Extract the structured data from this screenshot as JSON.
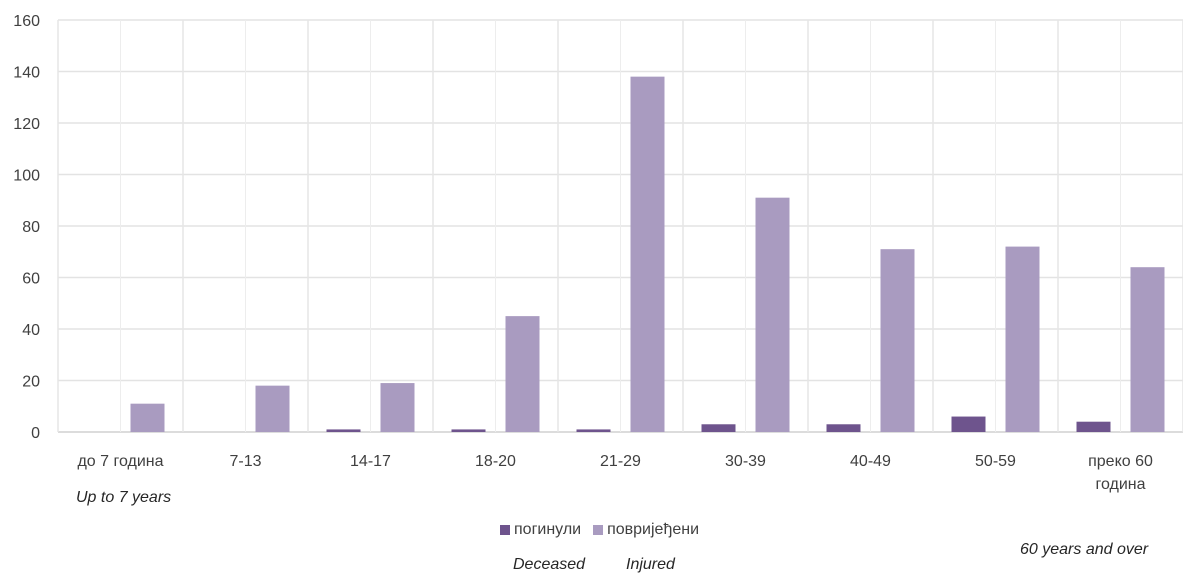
{
  "chart_data": {
    "type": "bar",
    "categories": [
      "до 7 година",
      "7-13",
      "14-17",
      "18-20",
      "21-29",
      "30-39",
      "40-49",
      "50-59",
      "преко 60 година"
    ],
    "series": [
      {
        "name": "погинули",
        "color": "#6e548d",
        "values": [
          0,
          0,
          1,
          1,
          1,
          3,
          3,
          6,
          4
        ]
      },
      {
        "name": "повријеђени",
        "color": "#a99bc0",
        "values": [
          11,
          18,
          19,
          45,
          138,
          91,
          71,
          72,
          64
        ]
      }
    ],
    "ylim": [
      0,
      160
    ],
    "yticks": [
      0,
      20,
      40,
      60,
      80,
      100,
      120,
      140,
      160
    ],
    "grid": true,
    "legend": "bottom-center",
    "annotations": {
      "first_category_en": "Up to 7 years",
      "last_category_en": "60 years and over",
      "legend_deceased_en": "Deceased",
      "legend_injured_en": "Injured"
    }
  }
}
